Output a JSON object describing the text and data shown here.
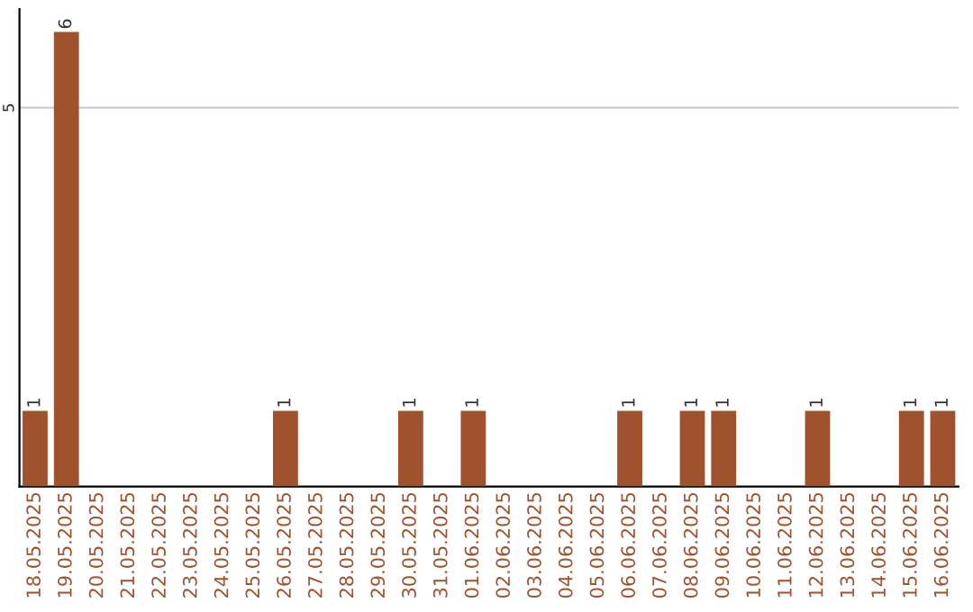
{
  "chart_data": {
    "type": "bar",
    "categories": [
      "18.05.2025",
      "19.05.2025",
      "20.05.2025",
      "21.05.2025",
      "22.05.2025",
      "23.05.2025",
      "24.05.2025",
      "25.05.2025",
      "26.05.2025",
      "27.05.2025",
      "28.05.2025",
      "29.05.2025",
      "30.05.2025",
      "31.05.2025",
      "01.06.2025",
      "02.06.2025",
      "03.06.2025",
      "04.06.2025",
      "05.06.2025",
      "06.06.2025",
      "07.06.2025",
      "08.06.2025",
      "09.06.2025",
      "10.06.2025",
      "11.06.2025",
      "12.06.2025",
      "13.06.2025",
      "14.06.2025",
      "15.06.2025",
      "16.06.2025"
    ],
    "values": [
      1,
      6,
      0,
      0,
      0,
      0,
      0,
      0,
      1,
      0,
      0,
      0,
      1,
      0,
      1,
      0,
      0,
      0,
      0,
      1,
      0,
      1,
      1,
      0,
      0,
      1,
      0,
      0,
      1,
      1
    ],
    "value_labels": [
      "1",
      "6",
      null,
      null,
      null,
      null,
      null,
      null,
      "1",
      null,
      null,
      null,
      "1",
      null,
      "1",
      null,
      null,
      null,
      null,
      "1",
      null,
      "1",
      "1",
      null,
      null,
      "1",
      null,
      null,
      "1",
      "1"
    ],
    "color": "#a0522d",
    "ylim": [
      0,
      6.3
    ],
    "yticks": [
      5
    ],
    "grid": "y",
    "legend": false
  }
}
